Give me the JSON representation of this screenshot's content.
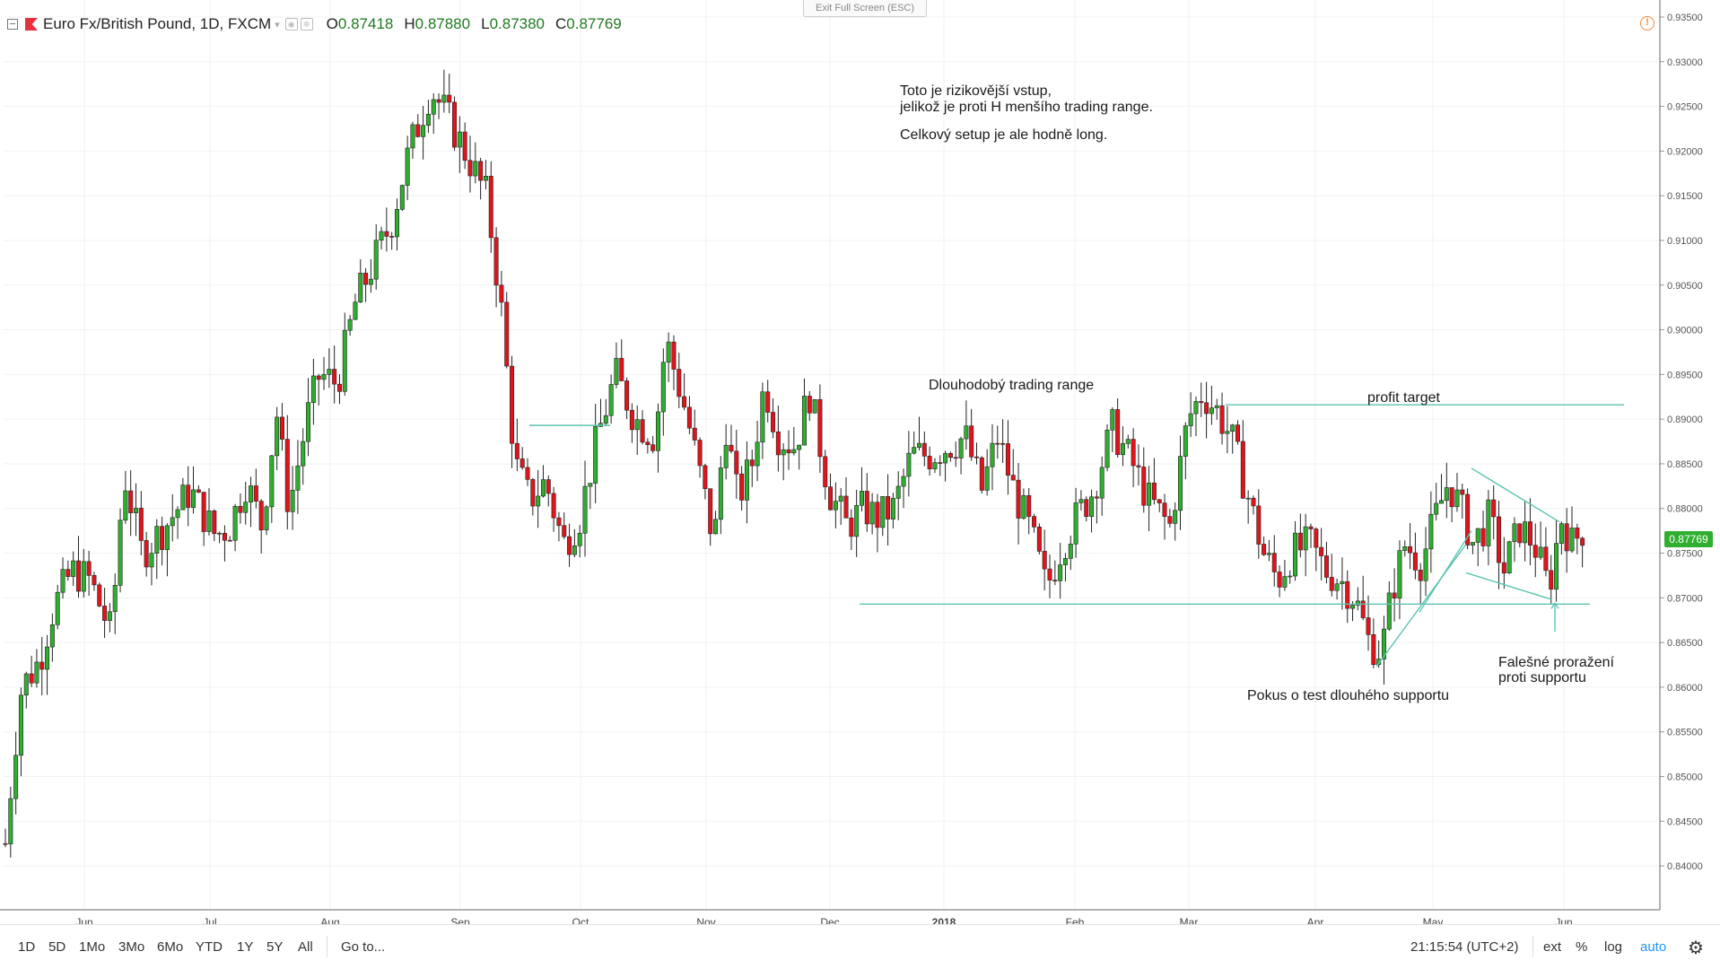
{
  "header": {
    "symbol": "Euro Fx/British Pound, 1D, FXCM",
    "open_label": "O",
    "open": "0.87418",
    "high_label": "H",
    "high": "0.87880",
    "low_label": "L",
    "low": "0.87380",
    "close_label": "C",
    "close": "0.87769"
  },
  "exit_fullscreen": "Exit Full Screen (ESC)",
  "last_price": "0.87769",
  "annotations": {
    "top_line1": "Toto je rizikovější vstup,",
    "top_line2": "jelikož je proti H menšího trading range.",
    "top_line3": "Celkový setup je ale hodně long.",
    "range": "Dlouhodobý trading range",
    "target": "profit target",
    "support_test": "Pokus o test dlouhého supportu",
    "false_break1": "Falešné proražení",
    "false_break2": "proti supportu"
  },
  "toolbar": {
    "ranges": [
      "1D",
      "5D",
      "1Mo",
      "3Mo",
      "6Mo",
      "YTD",
      "1Y",
      "5Y",
      "All"
    ],
    "goto": "Go to...",
    "time": "21:15:54 (UTC+2)",
    "ext": "ext",
    "percent": "%",
    "log": "log",
    "auto": "auto"
  },
  "colors": {
    "up": "#2fae2f",
    "down": "#e3131b",
    "lines": "#5cc4b1",
    "auto_active": "#2196f3"
  },
  "chart_data": {
    "type": "candlestick",
    "ylim": [
      0.8375,
      0.9355
    ],
    "y_ticks": [
      "0.93500",
      "0.93000",
      "0.92500",
      "0.92000",
      "0.91500",
      "0.91000",
      "0.90500",
      "0.90000",
      "0.89500",
      "0.89000",
      "0.88500",
      "0.88000",
      "0.87500",
      "0.87000",
      "0.86500",
      "0.86000",
      "0.85500",
      "0.85000",
      "0.84500",
      "0.84000"
    ],
    "x_ticks": [
      "Jun",
      "Jul",
      "Aug",
      "Sep",
      "Oct",
      "Nov",
      "Dec",
      "2018",
      "Feb",
      "Mar",
      "Apr",
      "May",
      "Jun"
    ],
    "last_price": 0.87769
  }
}
